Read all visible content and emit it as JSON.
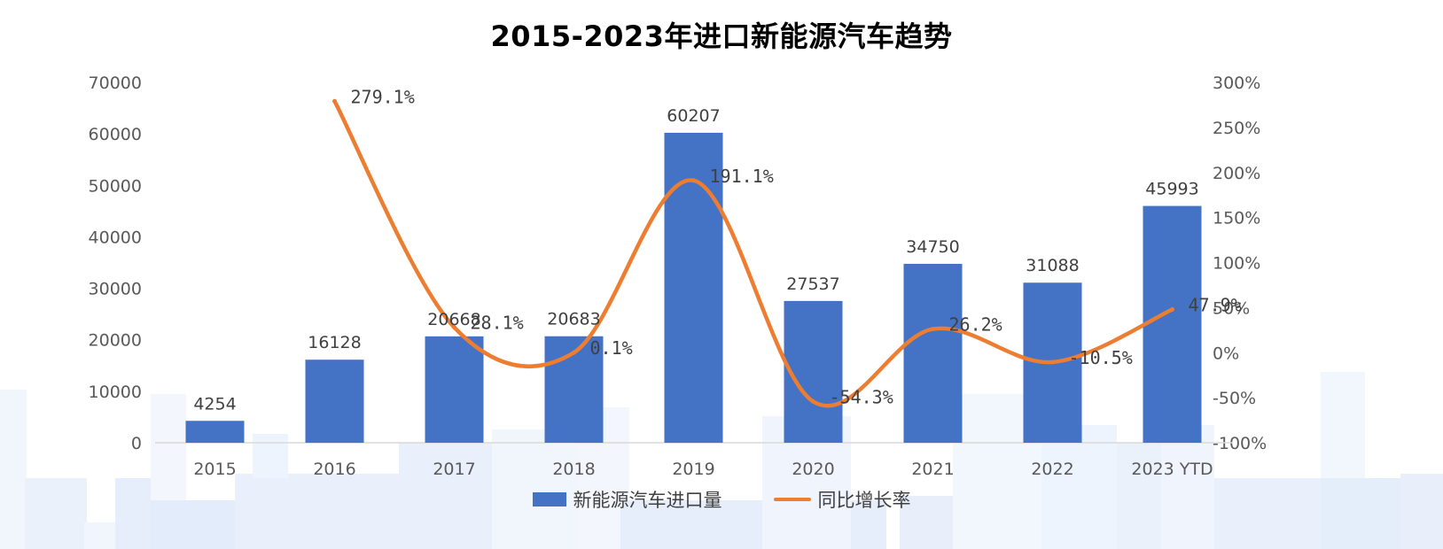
{
  "chart_data": {
    "type": "bar",
    "title": "2015-2023年进口新能源汽车趋势",
    "categories": [
      "2015",
      "2016",
      "2017",
      "2018",
      "2019",
      "2020",
      "2021",
      "2022",
      "2023 YTD"
    ],
    "series": [
      {
        "name": "新能源汽车进口量",
        "type": "bar",
        "axis": "left",
        "color": "#4472c4",
        "values": [
          4254,
          16128,
          20668,
          20683,
          60207,
          27537,
          34750,
          31088,
          45993
        ],
        "labels": [
          "4254",
          "16128",
          "20668",
          "20683",
          "60207",
          "27537",
          "34750",
          "31088",
          "45993"
        ]
      },
      {
        "name": "同比增长率",
        "type": "line",
        "axis": "right",
        "color": "#ed7d31",
        "values": [
          null,
          279.1,
          28.1,
          0.1,
          191.1,
          -54.3,
          26.2,
          -10.5,
          47.9
        ],
        "labels": [
          "",
          "279.1%",
          "28.1%",
          "0.1%",
          "191.1%",
          "-54.3%",
          "26.2%",
          "-10.5%",
          "47.9%"
        ]
      }
    ],
    "y_left": {
      "ylim": [
        0,
        70000
      ],
      "ticks": [
        "70000",
        "60000",
        "50000",
        "40000",
        "30000",
        "20000",
        "10000",
        "0"
      ]
    },
    "y_right": {
      "ylim": [
        -100,
        300
      ],
      "ticks": [
        "300%",
        "250%",
        "200%",
        "150%",
        "100%",
        "50%",
        "0%",
        "-50%",
        "-100%"
      ]
    },
    "grid": false,
    "legend_position": "bottom"
  }
}
